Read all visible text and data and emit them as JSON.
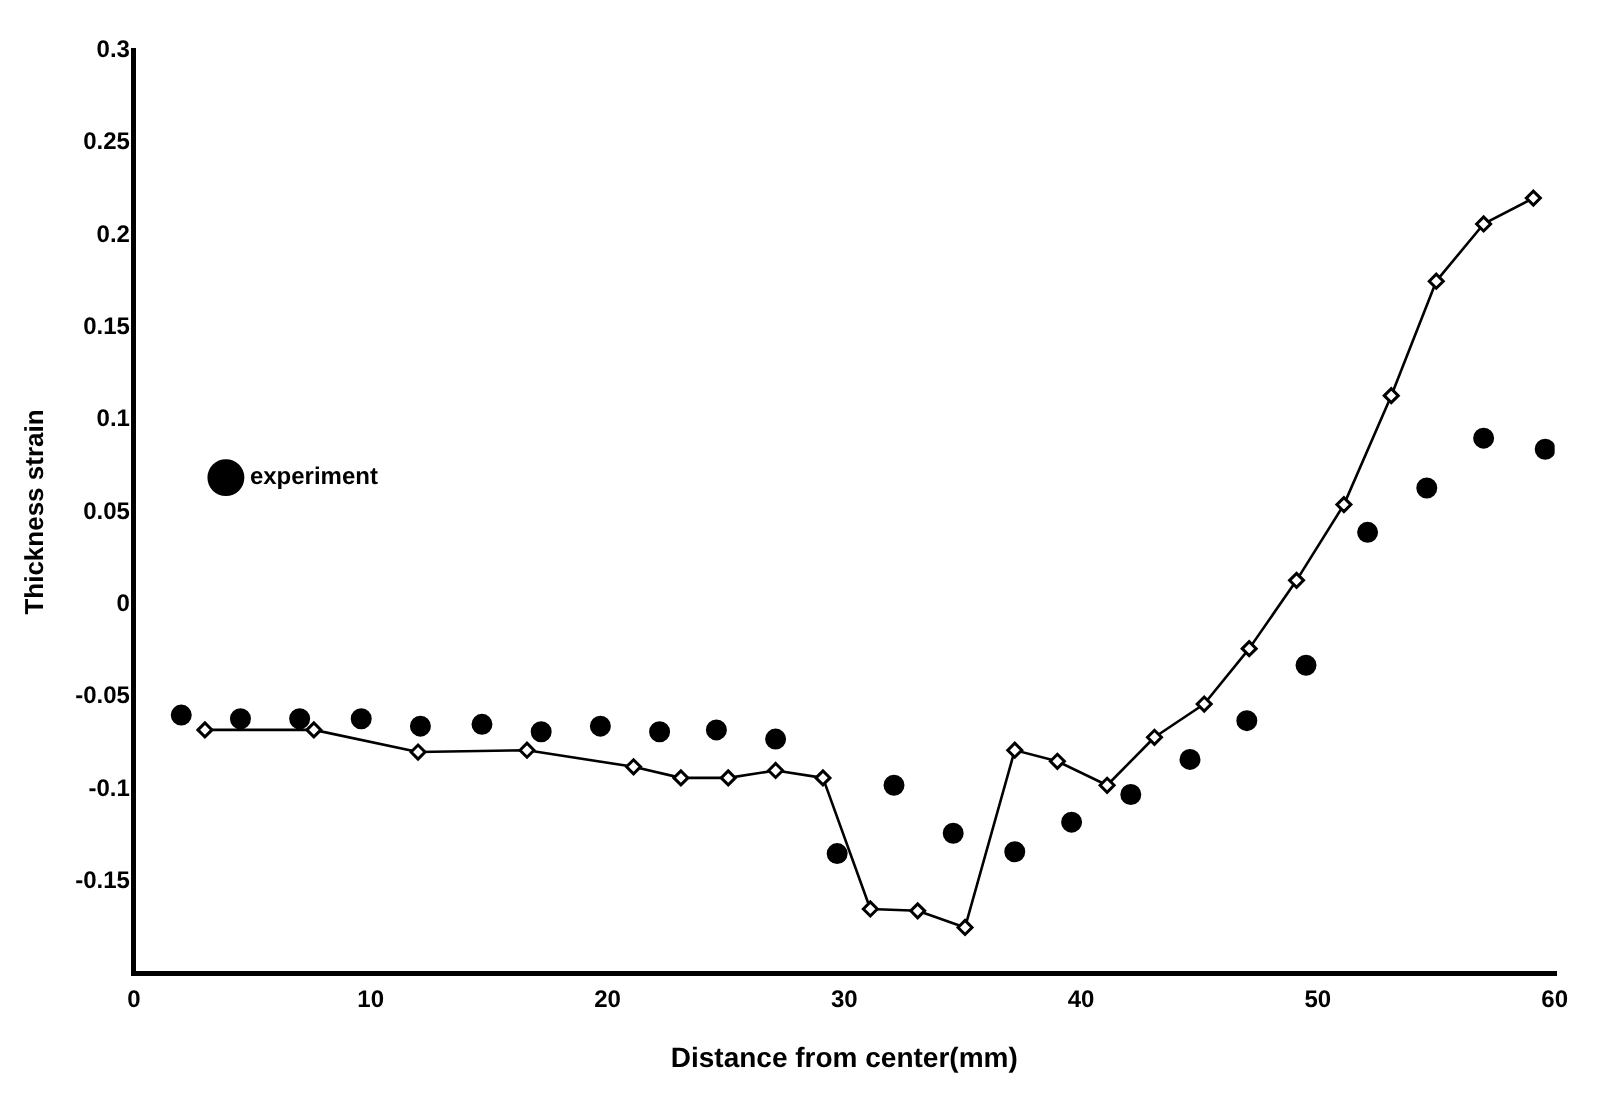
{
  "chart_data": {
    "type": "scatter",
    "xlabel": "Distance from center(mm)",
    "ylabel": "Thickness strain",
    "xlim": [
      0,
      60
    ],
    "xticks": [
      0,
      10,
      20,
      30,
      40,
      50,
      60
    ],
    "ylim": [
      -0.2,
      0.3
    ],
    "yticks": [
      -0.15,
      -0.1,
      -0.05,
      0,
      0.05,
      0.1,
      0.15,
      0.2,
      0.25,
      0.3
    ],
    "grid": false,
    "legend": "top",
    "series": [
      {
        "name": "experiment",
        "type": "scatter",
        "marker": "circle",
        "color": "#000000",
        "x": [
          2.0,
          4.5,
          7.0,
          9.6,
          12.1,
          14.7,
          17.2,
          19.7,
          22.2,
          24.6,
          27.1,
          29.7,
          32.1,
          34.6,
          37.2,
          39.6,
          42.1,
          44.6,
          47.0,
          49.5,
          52.1,
          54.6,
          57.0,
          59.6
        ],
        "values": [
          -0.06,
          -0.062,
          -0.062,
          -0.062,
          -0.066,
          -0.065,
          -0.069,
          -0.066,
          -0.069,
          -0.068,
          -0.073,
          -0.135,
          -0.098,
          -0.124,
          -0.134,
          -0.118,
          -0.103,
          -0.084,
          -0.063,
          -0.033,
          0.039,
          0.063,
          0.09,
          0.084
        ]
      },
      {
        "type": "line",
        "marker": "diamond",
        "line_style": "solid",
        "color": "#000000",
        "x": [
          3.0,
          7.6,
          12.0,
          16.6,
          21.1,
          23.1,
          25.1,
          27.1,
          29.1,
          31.1,
          33.1,
          35.1,
          37.2,
          39.0,
          41.1,
          43.1,
          45.2,
          47.1,
          49.1,
          51.1,
          53.1,
          55.0,
          57.0,
          59.1
        ],
        "values": [
          -0.068,
          -0.068,
          -0.08,
          -0.079,
          -0.088,
          -0.094,
          -0.094,
          -0.09,
          -0.094,
          -0.165,
          -0.166,
          -0.175,
          -0.079,
          -0.085,
          -0.098,
          -0.072,
          -0.054,
          -0.024,
          0.013,
          0.054,
          0.113,
          0.175,
          0.206,
          0.22
        ]
      }
    ]
  }
}
